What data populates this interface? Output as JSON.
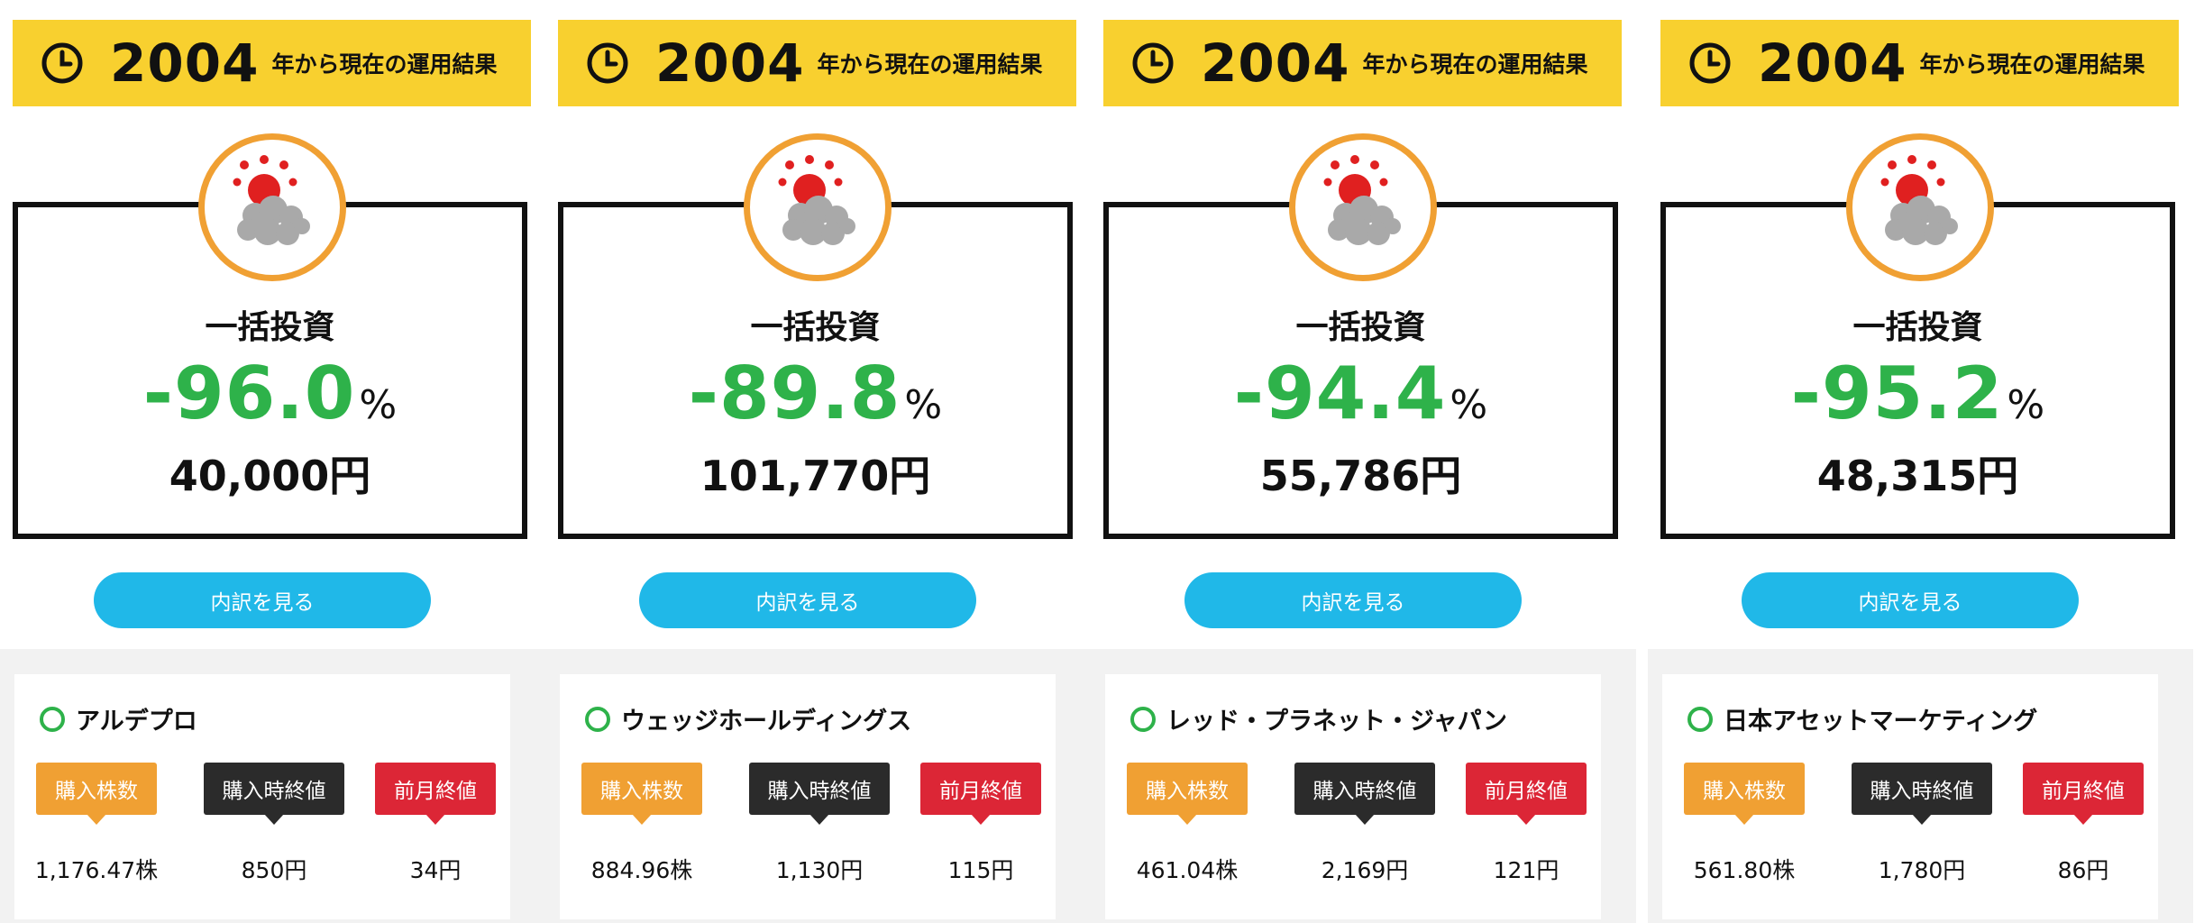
{
  "colors": {
    "banner": "#f8d02f",
    "loss": "#2eb24a",
    "button": "#20b8e8",
    "ring": "#f0a033",
    "tag_shares": "#f0a033",
    "tag_buy": "#2b2b2b",
    "tag_prev": "#dc2636"
  },
  "panels": [
    {
      "banner": {
        "year": "2004",
        "suffix": "年から現在の運用結果"
      },
      "result": {
        "label": "一括投資",
        "percent": "-96.0",
        "percent_unit": "%",
        "amount": "40,000円"
      },
      "button": "内訳を見る",
      "stock": {
        "name": "アルデプロ",
        "tags": [
          "購入株数",
          "購入時終値",
          "前月終値"
        ],
        "values": [
          "1,176.47株",
          "850円",
          "34円"
        ]
      }
    },
    {
      "banner": {
        "year": "2004",
        "suffix": "年から現在の運用結果"
      },
      "result": {
        "label": "一括投資",
        "percent": "-89.8",
        "percent_unit": "%",
        "amount": "101,770円"
      },
      "button": "内訳を見る",
      "stock": {
        "name": "ウェッジホールディングス",
        "tags": [
          "購入株数",
          "購入時終値",
          "前月終値"
        ],
        "values": [
          "884.96株",
          "1,130円",
          "115円"
        ]
      }
    },
    {
      "banner": {
        "year": "2004",
        "suffix": "年から現在の運用結果"
      },
      "result": {
        "label": "一括投資",
        "percent": "-94.4",
        "percent_unit": "%",
        "amount": "55,786円"
      },
      "button": "内訳を見る",
      "stock": {
        "name": "レッド・プラネット・ジャパン",
        "tags": [
          "購入株数",
          "購入時終値",
          "前月終値"
        ],
        "values": [
          "461.04株",
          "2,169円",
          "121円"
        ]
      }
    },
    {
      "banner": {
        "year": "2004",
        "suffix": "年から現在の運用結果"
      },
      "result": {
        "label": "一括投資",
        "percent": "-95.2",
        "percent_unit": "%",
        "amount": "48,315円"
      },
      "button": "内訳を見る",
      "stock": {
        "name": "日本アセットマーケティング",
        "tags": [
          "購入株数",
          "購入時終値",
          "前月終値"
        ],
        "values": [
          "561.80株",
          "1,780円",
          "86円"
        ]
      }
    }
  ]
}
